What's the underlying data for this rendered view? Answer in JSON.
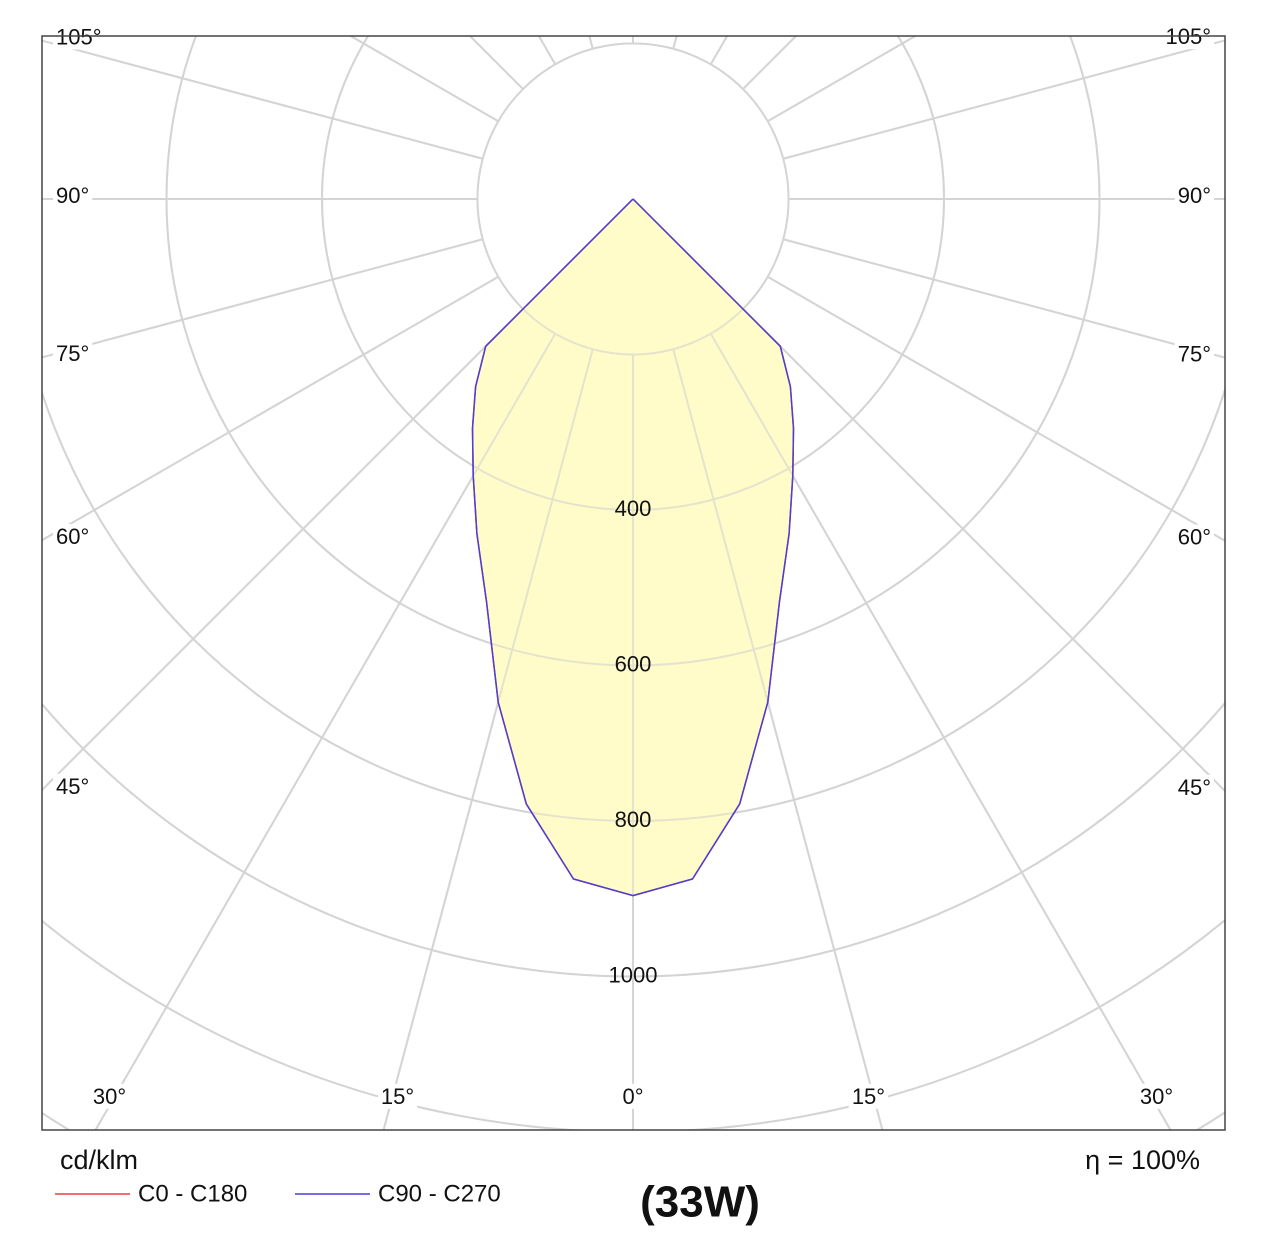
{
  "chart_data": {
    "type": "polar",
    "title": "(33W)",
    "unit_label": "cd/klm",
    "efficiency_label": "η = 100%",
    "angles": [
      -90,
      -85,
      -80,
      -75,
      -70,
      -65,
      -60,
      -55,
      -50,
      -45,
      -40,
      -35,
      -30,
      -25,
      -20,
      -15,
      -10,
      -5,
      0,
      5,
      10,
      15,
      20,
      25,
      30,
      35,
      40,
      45,
      50,
      55,
      60,
      65,
      70,
      75,
      80,
      85,
      90
    ],
    "series": [
      {
        "name": "C0 - C180",
        "color": "#e8413c",
        "values": [
          0,
          0,
          0,
          0,
          0,
          0,
          0,
          0,
          0,
          268,
          315,
          360,
          411,
          475,
          551,
          670,
          790,
          878,
          896,
          878,
          790,
          670,
          551,
          475,
          411,
          360,
          315,
          268,
          0,
          0,
          0,
          0,
          0,
          0,
          0,
          0,
          0
        ]
      },
      {
        "name": "C90 - C270",
        "color": "#4b3fd6",
        "values": [
          0,
          0,
          0,
          0,
          0,
          0,
          0,
          0,
          0,
          268,
          315,
          360,
          411,
          475,
          551,
          670,
          790,
          878,
          896,
          878,
          790,
          670,
          551,
          475,
          411,
          360,
          315,
          268,
          0,
          0,
          0,
          0,
          0,
          0,
          0,
          0,
          0
        ]
      }
    ],
    "fill_color": "#fffcc0",
    "rlim": [
      0,
      1200
    ],
    "rticks": [
      400,
      600,
      800,
      1000
    ],
    "angle_ticks": [
      {
        "value": 0,
        "label": "0°"
      },
      {
        "value": 15,
        "label": "15°"
      },
      {
        "value": 30,
        "label": "30°"
      },
      {
        "value": 45,
        "label": "45°"
      },
      {
        "value": 60,
        "label": "60°"
      },
      {
        "value": 75,
        "label": "75°"
      },
      {
        "value": 90,
        "label": "90°"
      },
      {
        "value": 105,
        "label": "105°"
      }
    ],
    "grid": true
  }
}
